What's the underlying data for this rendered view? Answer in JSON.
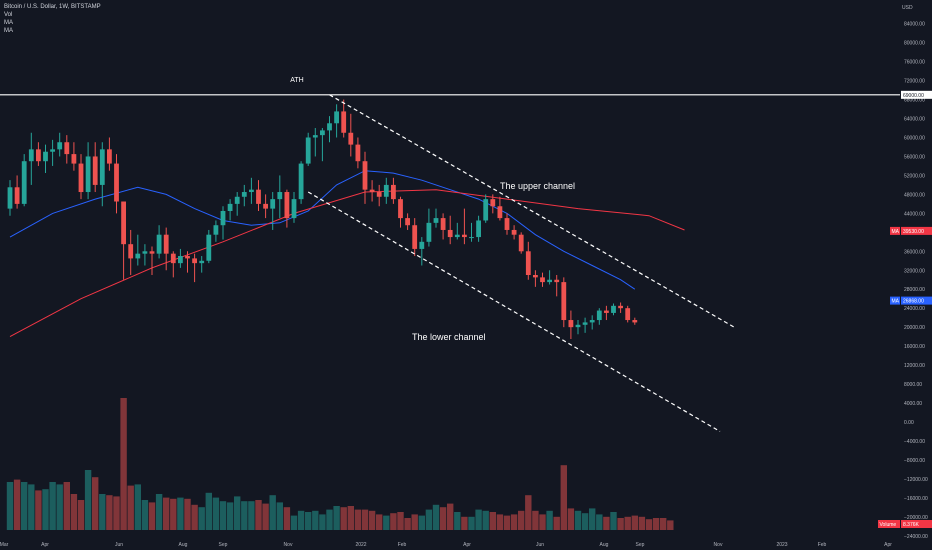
{
  "header": {
    "symbol": "Bitcoin / U.S. Dollar, 1W, BITSTAMP",
    "legend_items": [
      "Vol",
      "MA",
      "MA"
    ]
  },
  "currency_label": "USD",
  "chart_data": {
    "type": "candlestick",
    "title": "Bitcoin / U.S. Dollar, 1W, BITSTAMP",
    "price_axis": {
      "ticks": [
        "84000.00",
        "80000.00",
        "76000.00",
        "72000.00",
        "68000.00",
        "64000.00",
        "60000.00",
        "56000.00",
        "52000.00",
        "48000.00",
        "44000.00",
        "40000.00",
        "36000.00",
        "32000.00",
        "28000.00",
        "24000.00",
        "20000.00",
        "16000.00",
        "12000.00",
        "8000.00",
        "4000.00",
        "0.00",
        "−4000.00",
        "−8000.00",
        "−12000.00",
        "−16000.00",
        "−20000.00",
        "−24000.00"
      ],
      "ylim": [
        -27000,
        89000
      ]
    },
    "x_axis": {
      "ticks": [
        "Mar",
        "Apr",
        "Jun",
        "Aug",
        "Sep",
        "Nov",
        "2022",
        "Feb",
        "Apr",
        "Jun",
        "Aug",
        "Sep",
        "Nov",
        "2023",
        "Feb",
        "Apr"
      ]
    },
    "series": [
      {
        "name": "Price",
        "candles": [
          [
            45000,
            51000,
            43500,
            49500
          ],
          [
            49500,
            52000,
            45000,
            46000
          ],
          [
            46000,
            56500,
            45500,
            55000
          ],
          [
            55000,
            61000,
            50000,
            57500
          ],
          [
            57500,
            59000,
            54000,
            55000
          ],
          [
            55000,
            58500,
            52500,
            57000
          ],
          [
            57000,
            59500,
            54000,
            57500
          ],
          [
            57500,
            61000,
            56000,
            59000
          ],
          [
            59000,
            60500,
            54500,
            56500
          ],
          [
            56500,
            59000,
            53000,
            54500
          ],
          [
            54500,
            56500,
            47000,
            48500
          ],
          [
            48500,
            59000,
            47000,
            56000
          ],
          [
            56000,
            59000,
            48500,
            50000
          ],
          [
            50000,
            59000,
            45500,
            57500
          ],
          [
            57500,
            60000,
            53000,
            54500
          ],
          [
            54500,
            56500,
            44000,
            46500
          ],
          [
            46500,
            46500,
            30000,
            37500
          ],
          [
            37500,
            40500,
            31000,
            34500
          ],
          [
            34500,
            39500,
            33000,
            35500
          ],
          [
            35500,
            37500,
            33000,
            36000
          ],
          [
            36000,
            37000,
            31000,
            35500
          ],
          [
            35500,
            41500,
            34500,
            39500
          ],
          [
            39500,
            41000,
            32000,
            35500
          ],
          [
            35500,
            36000,
            30500,
            33500
          ],
          [
            33500,
            36500,
            32500,
            35000
          ],
          [
            35000,
            36000,
            31500,
            34500
          ],
          [
            34500,
            35500,
            29500,
            33500
          ],
          [
            33500,
            35000,
            31500,
            34000
          ],
          [
            34000,
            40500,
            33500,
            39500
          ],
          [
            39500,
            42500,
            38000,
            41500
          ],
          [
            41500,
            45500,
            38500,
            44500
          ],
          [
            44500,
            47000,
            42500,
            46000
          ],
          [
            46000,
            48500,
            43500,
            47500
          ],
          [
            47500,
            50000,
            45500,
            48500
          ],
          [
            48500,
            51500,
            46000,
            49000
          ],
          [
            49000,
            51000,
            44500,
            46000
          ],
          [
            46000,
            48000,
            43000,
            45000
          ],
          [
            45000,
            48500,
            40500,
            47000
          ],
          [
            47000,
            52000,
            43000,
            48500
          ],
          [
            48500,
            49000,
            41000,
            43000
          ],
          [
            43000,
            48500,
            42000,
            47000
          ],
          [
            47000,
            55000,
            46000,
            54500
          ],
          [
            54500,
            61000,
            54000,
            60000
          ],
          [
            60000,
            62000,
            56000,
            60500
          ],
          [
            60500,
            62000,
            55000,
            61500
          ],
          [
            61500,
            64500,
            59000,
            63000
          ],
          [
            63000,
            67000,
            60000,
            65500
          ],
          [
            65500,
            68000,
            60000,
            61000
          ],
          [
            61000,
            65000,
            56000,
            58500
          ],
          [
            58500,
            60000,
            53500,
            55000
          ],
          [
            55000,
            57000,
            46000,
            49000
          ],
          [
            49000,
            51000,
            46500,
            48500
          ],
          [
            48500,
            50000,
            45500,
            47500
          ],
          [
            47500,
            51500,
            46000,
            50000
          ],
          [
            50000,
            51500,
            46000,
            47000
          ],
          [
            47000,
            47500,
            41000,
            43000
          ],
          [
            43000,
            44000,
            40500,
            41500
          ],
          [
            41500,
            43000,
            35000,
            36500
          ],
          [
            36500,
            39000,
            33000,
            38000
          ],
          [
            38000,
            45000,
            37000,
            42000
          ],
          [
            42000,
            45000,
            41000,
            43000
          ],
          [
            43000,
            44000,
            38500,
            40500
          ],
          [
            40500,
            43500,
            37500,
            39000
          ],
          [
            39000,
            42000,
            38500,
            39500
          ],
          [
            39500,
            45000,
            37500,
            39000
          ],
          [
            39000,
            42000,
            38000,
            39000
          ],
          [
            39000,
            43500,
            38000,
            42500
          ],
          [
            42500,
            48000,
            42000,
            47000
          ],
          [
            47000,
            48000,
            44000,
            45500
          ],
          [
            45500,
            47500,
            42500,
            43000
          ],
          [
            43000,
            44000,
            39500,
            40500
          ],
          [
            40500,
            41500,
            38500,
            39500
          ],
          [
            39500,
            40000,
            35500,
            36000
          ],
          [
            36000,
            38000,
            30000,
            31000
          ],
          [
            31000,
            32000,
            28500,
            30500
          ],
          [
            30500,
            31500,
            28500,
            29500
          ],
          [
            29500,
            32000,
            29000,
            30000
          ],
          [
            30000,
            31000,
            26500,
            29500
          ],
          [
            29500,
            30500,
            20000,
            21500
          ],
          [
            21500,
            23500,
            17500,
            20000
          ],
          [
            20000,
            21500,
            18500,
            20500
          ],
          [
            20500,
            22000,
            18800,
            21000
          ],
          [
            21000,
            22500,
            19500,
            21500
          ],
          [
            21500,
            24000,
            20500,
            23500
          ],
          [
            23500,
            24500,
            21500,
            23000
          ],
          [
            23000,
            25000,
            22500,
            24500
          ],
          [
            24500,
            25200,
            23000,
            24000
          ],
          [
            24000,
            24500,
            21000,
            21500
          ],
          [
            21500,
            22000,
            20500,
            21000
          ]
        ]
      },
      {
        "name": "Volume",
        "values": [
          40,
          42,
          40,
          38,
          33,
          34,
          40,
          38,
          40,
          30,
          25,
          50,
          44,
          30,
          29,
          28,
          110,
          37,
          38,
          25,
          23,
          30,
          27,
          26,
          27,
          26,
          21,
          19,
          31,
          27,
          24,
          23,
          28,
          24,
          24,
          25,
          22,
          29,
          23,
          19,
          12,
          16,
          15,
          16,
          13,
          17,
          20,
          19,
          20,
          17,
          17,
          16,
          13,
          12,
          14,
          15,
          10,
          13,
          12,
          17,
          21,
          19,
          22,
          15,
          11,
          11,
          17,
          16,
          15,
          13,
          12,
          13,
          16,
          29,
          16,
          13,
          16,
          11,
          54,
          18,
          16,
          14,
          18,
          13,
          11,
          15,
          10,
          11,
          12,
          11,
          9,
          10,
          10,
          8
        ]
      },
      {
        "name": "MA",
        "color": "#2962ff",
        "values": [
          [
            0,
            39000
          ],
          [
            6,
            44000
          ],
          [
            12,
            47000
          ],
          [
            18,
            49500
          ],
          [
            22,
            48000
          ],
          [
            26,
            45000
          ],
          [
            30,
            42500
          ],
          [
            34,
            41500
          ],
          [
            38,
            42000
          ],
          [
            42,
            44500
          ],
          [
            46,
            50000
          ],
          [
            50,
            53000
          ],
          [
            54,
            52500
          ],
          [
            58,
            51000
          ],
          [
            62,
            49000
          ],
          [
            66,
            47000
          ],
          [
            70,
            44000
          ],
          [
            74,
            39500
          ],
          [
            78,
            36000
          ],
          [
            82,
            33000
          ],
          [
            86,
            30000
          ],
          [
            88,
            28000
          ]
        ]
      },
      {
        "name": "MA",
        "color": "#f23645",
        "values": [
          [
            0,
            18000
          ],
          [
            10,
            26000
          ],
          [
            20,
            32500
          ],
          [
            30,
            38000
          ],
          [
            40,
            44000
          ],
          [
            50,
            48500
          ],
          [
            60,
            49000
          ],
          [
            70,
            47000
          ],
          [
            80,
            45000
          ],
          [
            90,
            43500
          ],
          [
            95,
            40500
          ]
        ]
      }
    ],
    "annotations": {
      "horizontal_line": {
        "label": "69000.00"
      },
      "ath_label": "ATH",
      "upper_channel_label": "The upper channel",
      "lower_channel_label": "The lower channel",
      "upper_channel": [
        [
          45,
          69000
        ],
        [
          102,
          20000
        ]
      ],
      "lower_channel": [
        [
          42,
          48500
        ],
        [
          100,
          -2000
        ]
      ]
    },
    "price_labels": [
      {
        "tag": "MA",
        "value": "39530.00",
        "color": "#f23645"
      },
      {
        "tag": "MA",
        "value": "26868.00",
        "color": "#2962ff"
      },
      {
        "tag": "Volume",
        "value": "8.376K",
        "color": "#f23645"
      }
    ],
    "legend_placement": "top-left",
    "grid": false
  }
}
